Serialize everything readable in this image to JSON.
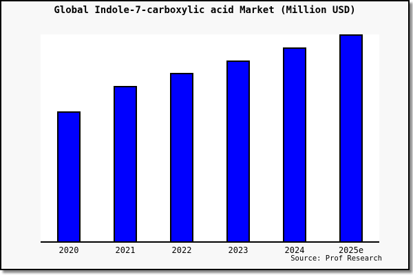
{
  "figure": {
    "title": "Global Indole-7-carboxylic acid Market (Million USD)",
    "source": "Source: Prof Research"
  },
  "colors": {
    "bar_fill": "#0000ff",
    "bar_border": "#000000",
    "plot_background": "#ffffff",
    "figure_background": "#f8f8f8",
    "figure_border": "#000000",
    "text": "#000000",
    "shadow": "#878787"
  },
  "chart_data": {
    "type": "bar",
    "title": "Global Indole-7-carboxylic acid Market (Million USD)",
    "categories": [
      "2020",
      "2021",
      "2022",
      "2023",
      "2024",
      "2025e"
    ],
    "values": [
      62.8,
      75.1,
      81.4,
      87.5,
      93.7,
      100
    ],
    "value_scale": "relative bar height as % of tallest bar (2025e); chart displays no numeric y-axis ticks",
    "xlabel": "",
    "ylabel": "",
    "ylim": [
      0,
      100
    ],
    "grid": false,
    "legend": "none",
    "bar_color": "#0000ff",
    "annotations": [
      "Source: Prof Research"
    ]
  }
}
